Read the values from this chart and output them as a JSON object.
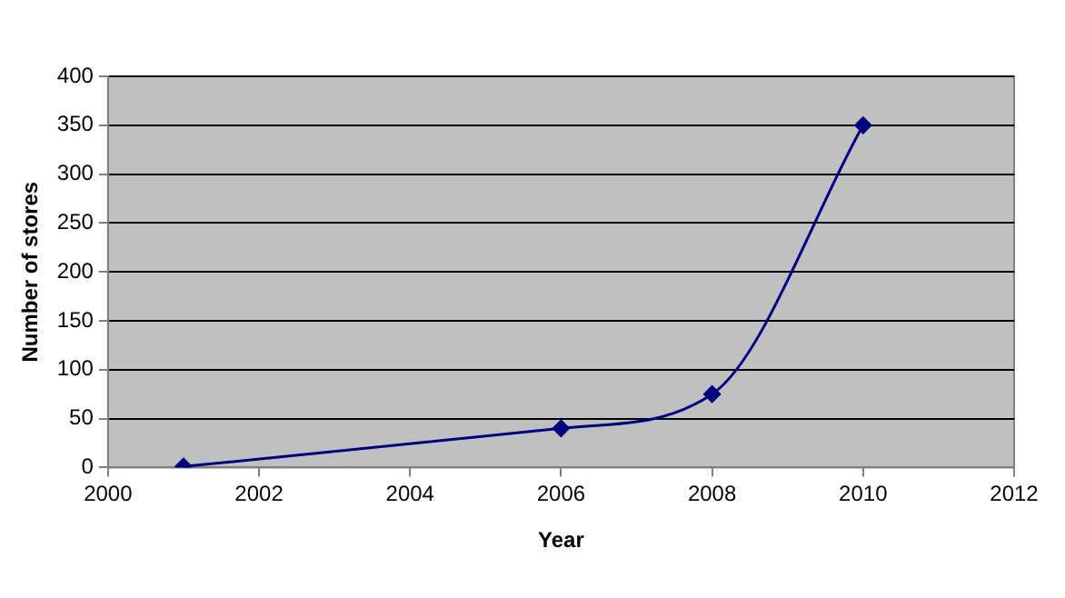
{
  "chart_data": {
    "type": "line",
    "xlabel": "Year",
    "ylabel": "Number of stores",
    "x": [
      2001,
      2006,
      2008,
      2010
    ],
    "series": [
      {
        "color": "#000080",
        "values": [
          1,
          40,
          75,
          350
        ]
      }
    ],
    "xlim": [
      2000,
      2012
    ],
    "xticks": [
      2000,
      2002,
      2004,
      2006,
      2008,
      2010,
      2012
    ],
    "ylim": [
      0,
      400
    ],
    "yticks": [
      0,
      50,
      100,
      150,
      200,
      250,
      300,
      350,
      400
    ],
    "grid": "y",
    "legend": false,
    "marker": "diamond",
    "line_style": "solid"
  }
}
